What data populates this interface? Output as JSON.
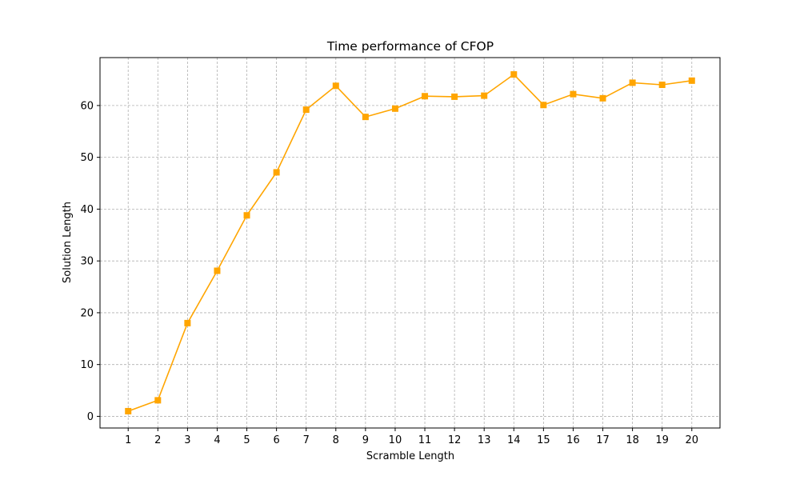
{
  "chart_data": {
    "type": "line",
    "title": "Time performance of CFOP",
    "xlabel": "Scramble Length",
    "ylabel": "Solution Length",
    "x": [
      1,
      2,
      3,
      4,
      5,
      6,
      7,
      8,
      9,
      10,
      11,
      12,
      13,
      14,
      15,
      16,
      17,
      18,
      19,
      20
    ],
    "series": [
      {
        "values": [
          1.0,
          3.1,
          18.0,
          28.1,
          38.8,
          47.1,
          59.2,
          63.8,
          57.8,
          59.4,
          61.8,
          61.7,
          61.9,
          66.0,
          60.1,
          62.2,
          61.4,
          64.4,
          64.0,
          64.8
        ],
        "color": "#ffa500",
        "marker": "square"
      }
    ],
    "xlim": [
      0.05,
      20.95
    ],
    "ylim": [
      -2.25,
      69.25
    ],
    "yticks": [
      0,
      10,
      20,
      30,
      40,
      50,
      60
    ],
    "xticks": [
      1,
      2,
      3,
      4,
      5,
      6,
      7,
      8,
      9,
      10,
      11,
      12,
      13,
      14,
      15,
      16,
      17,
      18,
      19,
      20
    ],
    "grid": true,
    "legend": "none"
  }
}
